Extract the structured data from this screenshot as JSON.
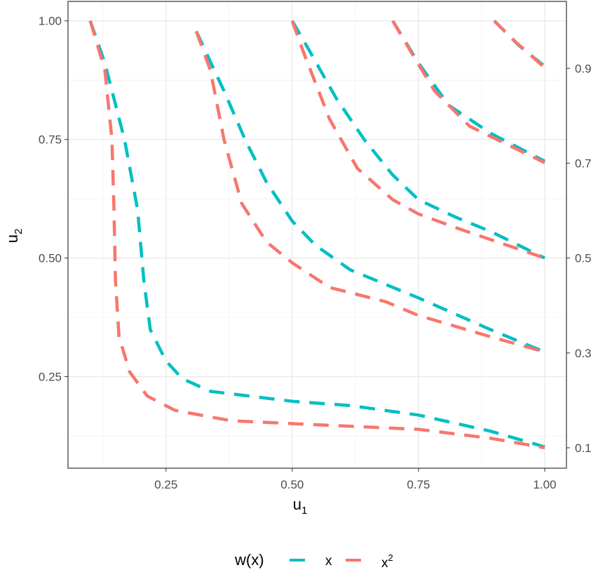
{
  "chart_data": {
    "type": "line",
    "title": "",
    "xlabel": "u",
    "xlabel_sub": "1",
    "ylabel": "u",
    "ylabel_sub": "2",
    "xlim": [
      0.056,
      1.043
    ],
    "ylim": [
      0.057,
      1.041
    ],
    "x_ticks": [
      0.25,
      0.5,
      0.75,
      1.0
    ],
    "x_tick_labels": [
      "0.25",
      "0.50",
      "0.75",
      "1.00"
    ],
    "y_ticks": [
      0.25,
      0.5,
      0.75,
      1.0
    ],
    "y_tick_labels": [
      "0.25",
      "0.50",
      "0.75",
      "1.00"
    ],
    "right_ticks": [
      0.1,
      0.3,
      0.5,
      0.7,
      0.9
    ],
    "right_tick_labels": [
      "0.1",
      "0.3",
      "0.5",
      "0.7",
      "0.9"
    ],
    "grid": true,
    "legend": {
      "title": "w(x)",
      "placement": "bottom",
      "entries": [
        {
          "label": "x",
          "color": "#00BFC4"
        },
        {
          "label": "x",
          "sup": "2",
          "color": "#F8766D"
        }
      ]
    },
    "series": [
      {
        "name": "x",
        "level": 0.1,
        "color": "#00BFC4",
        "points": [
          [
            0.1,
            1.0
          ],
          [
            0.129,
            0.911
          ],
          [
            0.168,
            0.749
          ],
          [
            0.194,
            0.601
          ],
          [
            0.206,
            0.453
          ],
          [
            0.219,
            0.349
          ],
          [
            0.25,
            0.283
          ],
          [
            0.282,
            0.246
          ],
          [
            0.338,
            0.219
          ],
          [
            0.5,
            0.198
          ],
          [
            0.615,
            0.189
          ],
          [
            0.75,
            0.169
          ],
          [
            0.893,
            0.135
          ],
          [
            1.0,
            0.102
          ]
        ]
      },
      {
        "name": "x^2",
        "level": 0.1,
        "color": "#F8766D",
        "points": [
          [
            0.1,
            1.0
          ],
          [
            0.129,
            0.896
          ],
          [
            0.143,
            0.749
          ],
          [
            0.147,
            0.601
          ],
          [
            0.15,
            0.453
          ],
          [
            0.157,
            0.334
          ],
          [
            0.178,
            0.26
          ],
          [
            0.213,
            0.209
          ],
          [
            0.268,
            0.179
          ],
          [
            0.379,
            0.157
          ],
          [
            0.5,
            0.151
          ],
          [
            0.75,
            0.139
          ],
          [
            0.893,
            0.12
          ],
          [
            1.0,
            0.1
          ]
        ]
      },
      {
        "name": "x",
        "level": 0.3,
        "color": "#00BFC4",
        "points": [
          [
            0.31,
            0.978
          ],
          [
            0.365,
            0.852
          ],
          [
            0.407,
            0.749
          ],
          [
            0.449,
            0.66
          ],
          [
            0.5,
            0.578
          ],
          [
            0.546,
            0.527
          ],
          [
            0.615,
            0.475
          ],
          [
            0.75,
            0.416
          ],
          [
            0.893,
            0.349
          ],
          [
            1.0,
            0.302
          ]
        ]
      },
      {
        "name": "x^2",
        "level": 0.3,
        "color": "#F8766D",
        "points": [
          [
            0.31,
            0.978
          ],
          [
            0.338,
            0.896
          ],
          [
            0.365,
            0.749
          ],
          [
            0.4,
            0.615
          ],
          [
            0.449,
            0.534
          ],
          [
            0.5,
            0.49
          ],
          [
            0.574,
            0.438
          ],
          [
            0.685,
            0.408
          ],
          [
            0.75,
            0.379
          ],
          [
            0.893,
            0.334
          ],
          [
            1.0,
            0.302
          ]
        ]
      },
      {
        "name": "x",
        "level": 0.5,
        "color": "#00BFC4",
        "points": [
          [
            0.5,
            1.0
          ],
          [
            0.532,
            0.941
          ],
          [
            0.587,
            0.837
          ],
          [
            0.643,
            0.749
          ],
          [
            0.699,
            0.675
          ],
          [
            0.75,
            0.623
          ],
          [
            0.824,
            0.586
          ],
          [
            0.893,
            0.556
          ],
          [
            1.0,
            0.5
          ]
        ]
      },
      {
        "name": "x^2",
        "level": 0.5,
        "color": "#F8766D",
        "points": [
          [
            0.5,
            1.0
          ],
          [
            0.525,
            0.926
          ],
          [
            0.574,
            0.793
          ],
          [
            0.629,
            0.689
          ],
          [
            0.699,
            0.623
          ],
          [
            0.75,
            0.593
          ],
          [
            0.824,
            0.564
          ],
          [
            1.0,
            0.5
          ]
        ]
      },
      {
        "name": "x",
        "level": 0.7,
        "color": "#00BFC4",
        "points": [
          [
            0.699,
            1.0
          ],
          [
            0.75,
            0.911
          ],
          [
            0.81,
            0.822
          ],
          [
            0.893,
            0.763
          ],
          [
            1.0,
            0.704
          ]
        ]
      },
      {
        "name": "x^2",
        "level": 0.7,
        "color": "#F8766D",
        "points": [
          [
            0.699,
            1.0
          ],
          [
            0.74,
            0.926
          ],
          [
            0.782,
            0.852
          ],
          [
            0.851,
            0.778
          ],
          [
            1.0,
            0.701
          ]
        ]
      },
      {
        "name": "x",
        "level": 0.9,
        "color": "#00BFC4",
        "points": [
          [
            0.9,
            1.0
          ],
          [
            0.949,
            0.948
          ],
          [
            1.0,
            0.904
          ]
        ]
      },
      {
        "name": "x^2",
        "level": 0.9,
        "color": "#F8766D",
        "points": [
          [
            0.9,
            1.0
          ],
          [
            0.942,
            0.956
          ],
          [
            1.0,
            0.901
          ]
        ]
      }
    ]
  }
}
